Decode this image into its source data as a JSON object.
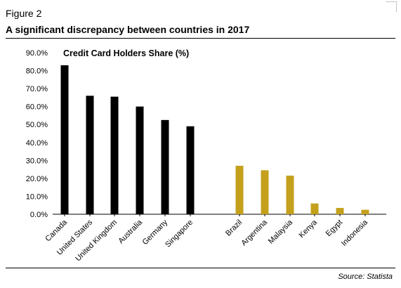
{
  "figure_label": "Figure 2",
  "headline": "A significant discrepancy between countries in 2017",
  "source": "Source: Statista",
  "colors": {
    "group_a": "#000000",
    "group_b": "#C4A01C",
    "text": "#000000"
  },
  "chart_data": {
    "type": "bar",
    "title": "Credit Card Holders Share (%)",
    "xlabel": "",
    "ylabel": "",
    "ylim": [
      0,
      90
    ],
    "grid": false,
    "yticks": [
      "0.0%",
      "10.0%",
      "20.0%",
      "30.0%",
      "40.0%",
      "50.0%",
      "60.0%",
      "70.0%",
      "80.0%",
      "90.0%"
    ],
    "categories": [
      "Canada",
      "United States",
      "United Kingdom",
      "Australia",
      "Germany",
      "Singapore",
      "Brazil",
      "Argentina",
      "Malaysia",
      "Kenya",
      "Egypt",
      "Indonesia"
    ],
    "values": [
      83,
      66,
      65.5,
      60,
      52.5,
      49,
      27,
      24.5,
      21.5,
      6,
      3.5,
      2.5
    ],
    "groups": [
      "a",
      "a",
      "a",
      "a",
      "a",
      "a",
      "b",
      "b",
      "b",
      "b",
      "b",
      "b"
    ]
  }
}
